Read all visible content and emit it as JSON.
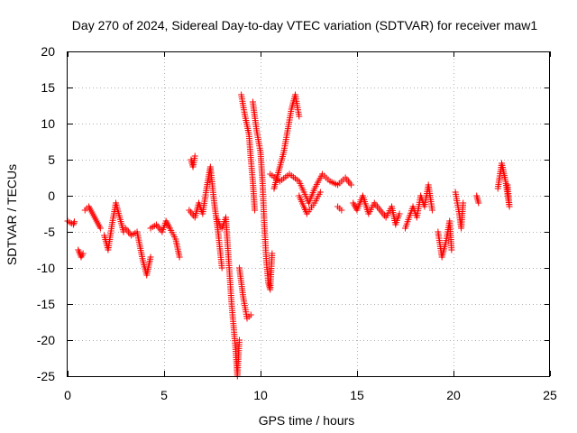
{
  "chart_data": {
    "type": "scatter",
    "title": "Day 270 of 2024, Sidereal Day-to-day VTEC variation (SDTVAR) for receiver maw1",
    "xlabel": "GPS time / hours",
    "ylabel": "SDTVAR / TECUs",
    "xlim": [
      0,
      25
    ],
    "ylim": [
      -25,
      20
    ],
    "xticks": [
      0,
      5,
      10,
      15,
      20,
      25
    ],
    "yticks": [
      -25,
      -20,
      -15,
      -10,
      -5,
      0,
      5,
      10,
      15,
      20
    ],
    "grid": true,
    "marker": "+",
    "series_color": "#ff0000",
    "series": [
      {
        "name": "SDTVAR",
        "segments": [
          [
            [
              0.0,
              -3.5
            ],
            [
              0.3,
              -4.0
            ],
            [
              0.35,
              -3.6
            ]
          ],
          [
            [
              0.55,
              -7.5
            ],
            [
              0.7,
              -8.5
            ],
            [
              0.8,
              -8.0
            ]
          ],
          [
            [
              0.9,
              -2.0
            ],
            [
              1.1,
              -1.5
            ],
            [
              1.3,
              -2.5
            ],
            [
              1.5,
              -3.5
            ],
            [
              1.7,
              -4.5
            ]
          ],
          [
            [
              1.9,
              -5.5
            ],
            [
              2.1,
              -7.5
            ],
            [
              2.3,
              -4.0
            ],
            [
              2.5,
              -1.0
            ],
            [
              2.7,
              -3.0
            ],
            [
              2.9,
              -5.0
            ]
          ],
          [
            [
              3.0,
              -4.5
            ],
            [
              3.3,
              -5.5
            ],
            [
              3.6,
              -5.0
            ],
            [
              3.9,
              -9.0
            ],
            [
              4.1,
              -11.0
            ],
            [
              4.3,
              -8.5
            ]
          ],
          [
            [
              4.3,
              -4.5
            ],
            [
              4.6,
              -4.0
            ],
            [
              4.9,
              -5.0
            ],
            [
              5.1,
              -3.5
            ],
            [
              5.3,
              -4.5
            ],
            [
              5.6,
              -6.0
            ],
            [
              5.8,
              -8.5
            ]
          ],
          [
            [
              6.3,
              -2.0
            ],
            [
              6.6,
              -3.0
            ],
            [
              6.8,
              -1.0
            ],
            [
              7.0,
              -2.5
            ],
            [
              7.2,
              1.0
            ],
            [
              7.4,
              4.0
            ],
            [
              7.6,
              -1.0
            ],
            [
              7.8,
              -5.0
            ],
            [
              8.0,
              -10.0
            ]
          ],
          [
            [
              6.4,
              5.0
            ],
            [
              6.5,
              4.0
            ],
            [
              6.6,
              5.5
            ]
          ],
          [
            [
              7.7,
              -3.0
            ],
            [
              8.0,
              -4.5
            ],
            [
              8.2,
              -3.0
            ],
            [
              8.3,
              -7.0
            ],
            [
              8.5,
              -15.0
            ],
            [
              8.7,
              -21.0
            ],
            [
              8.8,
              -25.0
            ],
            [
              8.9,
              -20.0
            ]
          ],
          [
            [
              9.0,
              14.0
            ],
            [
              9.2,
              11.0
            ],
            [
              9.4,
              8.5
            ],
            [
              9.5,
              5.0
            ],
            [
              9.6,
              2.0
            ],
            [
              9.7,
              -2.0
            ]
          ],
          [
            [
              8.9,
              -10.0
            ],
            [
              9.1,
              -14.0
            ],
            [
              9.3,
              -17.0
            ],
            [
              9.5,
              -16.5
            ]
          ],
          [
            [
              9.6,
              13.0
            ],
            [
              9.8,
              9.0
            ],
            [
              10.0,
              6.0
            ],
            [
              10.1,
              2.0
            ],
            [
              10.2,
              -4.0
            ],
            [
              10.3,
              -9.0
            ],
            [
              10.4,
              -12.0
            ],
            [
              10.5,
              -13.0
            ],
            [
              10.6,
              -8.0
            ]
          ],
          [
            [
              10.7,
              1.0
            ],
            [
              11.0,
              4.0
            ],
            [
              11.2,
              6.0
            ],
            [
              11.4,
              9.0
            ],
            [
              11.6,
              12.0
            ],
            [
              11.8,
              14.0
            ],
            [
              12.0,
              11.0
            ]
          ],
          [
            [
              10.5,
              3.0
            ],
            [
              11.0,
              2.0
            ],
            [
              11.5,
              3.0
            ],
            [
              12.0,
              2.0
            ],
            [
              12.5,
              -1.0
            ],
            [
              12.8,
              1.0
            ],
            [
              13.2,
              3.0
            ],
            [
              13.6,
              2.0
            ],
            [
              14.0,
              1.5
            ],
            [
              14.4,
              2.5
            ],
            [
              14.7,
              1.5
            ]
          ],
          [
            [
              12.0,
              0.0
            ],
            [
              12.4,
              -2.5
            ],
            [
              12.8,
              -1.0
            ],
            [
              13.1,
              0.5
            ]
          ],
          [
            [
              14.0,
              -1.5
            ],
            [
              14.2,
              -2.0
            ]
          ],
          [
            [
              14.8,
              -1.0
            ],
            [
              15.0,
              -2.0
            ],
            [
              15.3,
              0.0
            ],
            [
              15.6,
              -2.5
            ],
            [
              15.9,
              -1.0
            ],
            [
              16.2,
              -2.0
            ],
            [
              16.5,
              -3.0
            ],
            [
              16.8,
              -1.5
            ],
            [
              17.0,
              -4.0
            ],
            [
              17.2,
              -2.5
            ]
          ],
          [
            [
              17.5,
              -4.5
            ],
            [
              17.7,
              -3.0
            ],
            [
              17.9,
              -1.5
            ],
            [
              18.1,
              -3.0
            ],
            [
              18.3,
              0.0
            ],
            [
              18.5,
              -1.5
            ],
            [
              18.7,
              1.5
            ],
            [
              18.9,
              -2.0
            ]
          ],
          [
            [
              19.2,
              -5.0
            ],
            [
              19.4,
              -8.5
            ],
            [
              19.6,
              -6.5
            ],
            [
              19.8,
              -3.5
            ],
            [
              19.9,
              -7.5
            ]
          ],
          [
            [
              20.1,
              0.5
            ],
            [
              20.3,
              -2.5
            ],
            [
              20.4,
              -4.5
            ],
            [
              20.5,
              -1.0
            ]
          ],
          [
            [
              21.2,
              0.0
            ],
            [
              21.3,
              -1.0
            ]
          ],
          [
            [
              22.3,
              1.0
            ],
            [
              22.5,
              4.5
            ],
            [
              22.7,
              2.0
            ],
            [
              22.9,
              -1.5
            ],
            [
              22.8,
              1.5
            ]
          ]
        ]
      }
    ]
  }
}
